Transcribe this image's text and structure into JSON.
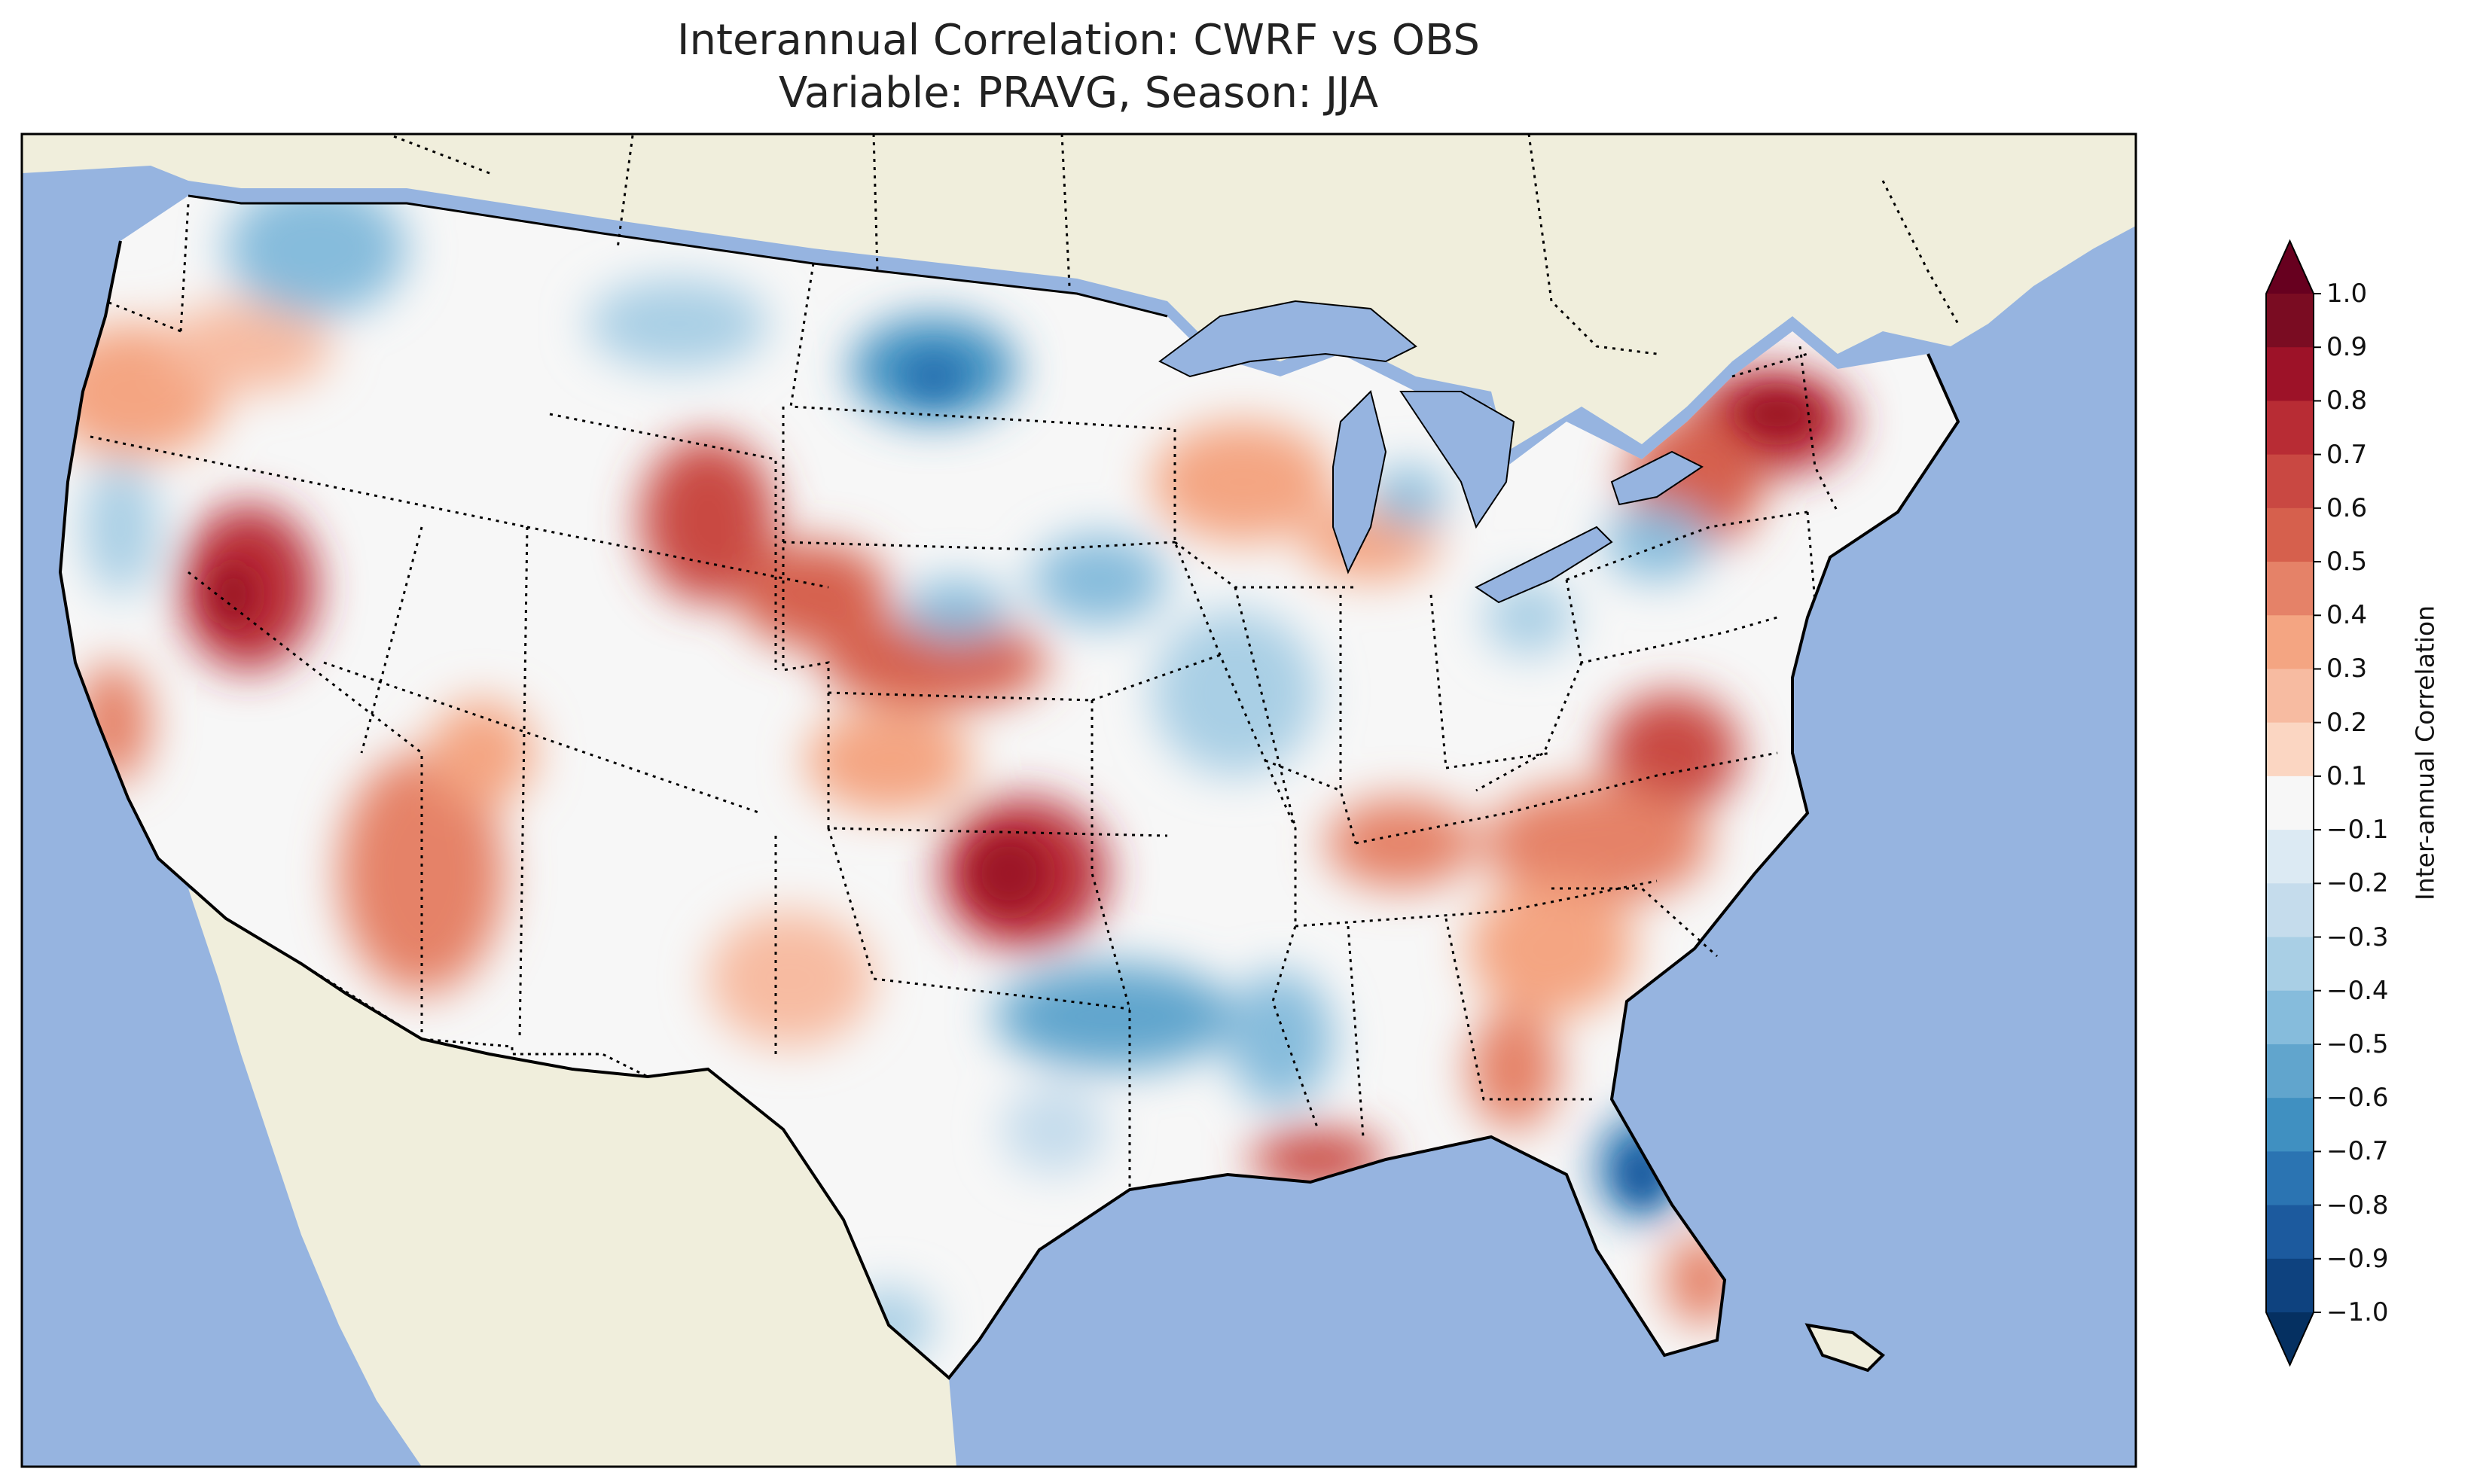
{
  "title": {
    "line1": "Interannual Correlation: CWRF vs OBS",
    "line2": "Variable: PRAVG, Season: JJA"
  },
  "map": {
    "region": "Contiguous United States",
    "ocean_color": "#96b4e0",
    "land_color": "#f0eedc",
    "border_color": "#000000",
    "state_border_style": "dotted",
    "field_highlights": [
      {
        "area": "Northeast (New York / Vermont)",
        "correlation": 0.8
      },
      {
        "area": "Oklahoma / Texas Panhandle",
        "correlation": 0.8
      },
      {
        "area": "Wyoming / Colorado",
        "correlation": 0.6
      },
      {
        "area": "Nevada",
        "correlation": 0.7
      },
      {
        "area": "Arizona",
        "correlation": 0.5
      },
      {
        "area": "Virginia / North Carolina",
        "correlation": 0.6
      },
      {
        "area": "Southern Louisiana",
        "correlation": 0.7
      },
      {
        "area": "Central Florida",
        "correlation": -0.7
      },
      {
        "area": "South Dakota / Minnesota",
        "correlation": -0.6
      },
      {
        "area": "Arkansas / Oklahoma",
        "correlation": -0.5
      },
      {
        "area": "Idaho / Washington",
        "correlation": -0.4
      },
      {
        "area": "Iowa / Illinois",
        "correlation": -0.4
      }
    ]
  },
  "colorbar": {
    "title": "Inter-annual Correlation",
    "ticks": [
      "1.0",
      "0.9",
      "0.8",
      "0.7",
      "0.6",
      "0.5",
      "0.4",
      "0.3",
      "0.2",
      "0.1",
      "−0.1",
      "−0.2",
      "−0.3",
      "−0.4",
      "−0.5",
      "−0.6",
      "−0.7",
      "−0.8",
      "−0.9",
      "−1.0"
    ],
    "colors": [
      "#7a0c22",
      "#9d1228",
      "#b82c34",
      "#c94842",
      "#d6604d",
      "#e58268",
      "#f4a582",
      "#f7bba1",
      "#fbd6c2",
      "#f7f7f7",
      "#dceaf3",
      "#c5dcec",
      "#a9cfe5",
      "#86bcdc",
      "#61a5cd",
      "#4090c1",
      "#2b74b2",
      "#1c5a9e",
      "#0e427f"
    ],
    "extend_high": "#67001f",
    "extend_low": "#053061",
    "range": [
      -1.0,
      1.0
    ]
  }
}
